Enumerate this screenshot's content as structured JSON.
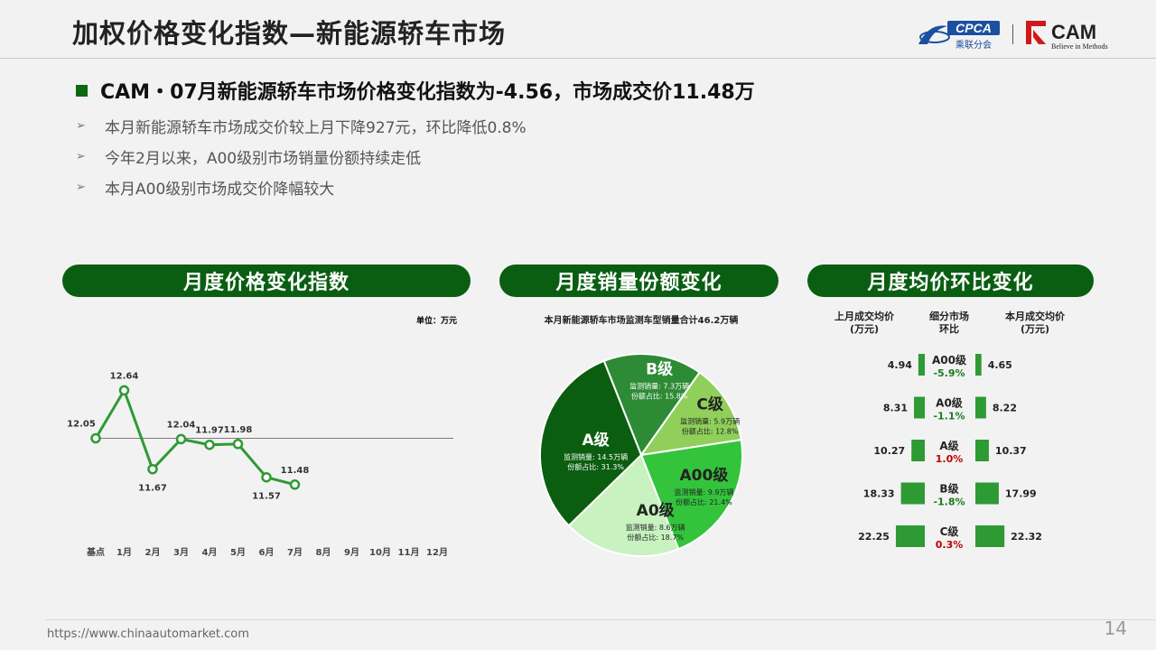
{
  "header": {
    "title": "加权价格变化指数—新能源轿车市场",
    "logo_cpca": "CPCA",
    "logo_cpca_sub": "乘联分会",
    "logo_cam": "CAM",
    "logo_cam_sub": "Believe in Methods"
  },
  "summary": {
    "headline": "CAM・07月新能源轿车市场价格变化指数为-4.56，市场成交价11.48万",
    "bullets": [
      "本月新能源轿车市场成交价较上月下降927元，环比降低0.8%",
      "今年2月以来，A00级别市场销量份额持续走低",
      "本月A00级别市场成交价降幅较大"
    ]
  },
  "panels": {
    "left": "月度价格变化指数",
    "middle": "月度销量份额变化",
    "right": "月度均价环比变化"
  },
  "footer": {
    "url": "https://www.chinaautomarket.com",
    "page": "14"
  },
  "colors": {
    "dark_green": "#0a5e12",
    "accent_green": "#2e9a34",
    "up_red": "#c00000",
    "down_green": "#1a7a22"
  },
  "chart_data": [
    {
      "type": "line",
      "unit_label": "单位：万元",
      "categories": [
        "基点",
        "1月",
        "2月",
        "3月",
        "4月",
        "5月",
        "6月",
        "7月",
        "8月",
        "9月",
        "10月",
        "11月",
        "12月"
      ],
      "series": [
        {
          "values": [
            12.05,
            12.64,
            11.67,
            12.04,
            11.97,
            11.98,
            11.57,
            11.48,
            null,
            null,
            null,
            null,
            null
          ]
        }
      ],
      "baseline": 12.05,
      "ylim": [
        11.0,
        13.0
      ]
    },
    {
      "type": "pie",
      "title": "本月新能源轿车市场监测车型销量合计46.2万辆",
      "slices": [
        {
          "name": "B级",
          "sales": "监测销量: 7.3万辆",
          "share_label": "份额占比: 15.8%",
          "share": 15.8,
          "color": "#2e8b35"
        },
        {
          "name": "C级",
          "sales": "监测销量: 5.9万辆",
          "share_label": "份额占比: 12.8%",
          "share": 12.8,
          "color": "#8fcf5a"
        },
        {
          "name": "A00级",
          "sales": "监测销量: 9.9万辆",
          "share_label": "份额占比: 21.4%",
          "share": 21.4,
          "color": "#33c43c"
        },
        {
          "name": "A0级",
          "sales": "监测销量: 8.6万辆",
          "share_label": "份额占比: 18.7%",
          "share": 18.7,
          "color": "#c8f2c0"
        },
        {
          "name": "A级",
          "sales": "监测销量: 14.5万辆",
          "share_label": "份额占比: 31.3%",
          "share": 31.3,
          "color": "#0b5e10"
        }
      ]
    },
    {
      "type": "bar",
      "headers": {
        "prev": "上月成交均价",
        "prev_unit": "(万元)",
        "mid": "细分市场",
        "mid_sub": "环比",
        "curr": "本月成交均价",
        "curr_unit": "(万元)"
      },
      "rows": [
        {
          "segment": "A00级",
          "prev": 4.94,
          "prev_label": "4.94",
          "curr": 4.65,
          "curr_label": "4.65",
          "change": "-5.9%",
          "up": false
        },
        {
          "segment": "A0级",
          "prev": 8.31,
          "prev_label": "8.31",
          "curr": 8.22,
          "curr_label": "8.22",
          "change": "-1.1%",
          "up": false
        },
        {
          "segment": "A级",
          "prev": 10.27,
          "prev_label": "10.27",
          "curr": 10.37,
          "curr_label": "10.37",
          "change": "1.0%",
          "up": true
        },
        {
          "segment": "B级",
          "prev": 18.33,
          "prev_label": "18.33",
          "curr": 17.99,
          "curr_label": "17.99",
          "change": "-1.8%",
          "up": false
        },
        {
          "segment": "C级",
          "prev": 22.25,
          "prev_label": "22.25",
          "curr": 22.32,
          "curr_label": "22.32",
          "change": "0.3%",
          "up": true
        }
      ]
    }
  ]
}
